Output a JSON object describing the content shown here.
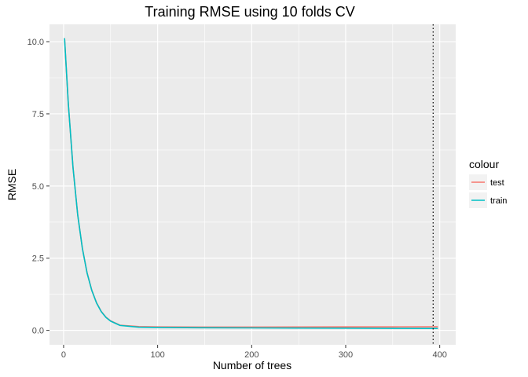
{
  "chart_data": {
    "type": "line",
    "title": "Training RMSE using 10 folds CV",
    "xlabel": "Number of trees",
    "ylabel": "RMSE",
    "xlim": [
      -15,
      417
    ],
    "ylim": [
      -0.5,
      10.6
    ],
    "x_ticks": [
      0,
      100,
      200,
      300,
      400
    ],
    "x_tick_labels": [
      "0",
      "100",
      "200",
      "300",
      "400"
    ],
    "y_ticks": [
      0,
      2.5,
      5,
      7.5,
      10
    ],
    "y_tick_labels": [
      "0.0",
      "2.5",
      "5.0",
      "7.5",
      "10.0"
    ],
    "grid": true,
    "legend": {
      "title": "colour",
      "position": "right",
      "entries": [
        "test",
        "train"
      ]
    },
    "series": [
      {
        "name": "test",
        "color": "#F8766D",
        "x": [
          1,
          5,
          10,
          15,
          20,
          25,
          30,
          35,
          40,
          45,
          50,
          60,
          80,
          100,
          150,
          200,
          250,
          300,
          350,
          398
        ],
        "y": [
          10.12,
          7.85,
          5.65,
          4.0,
          2.84,
          1.99,
          1.39,
          0.96,
          0.66,
          0.46,
          0.33,
          0.18,
          0.13,
          0.12,
          0.115,
          0.115,
          0.117,
          0.12,
          0.122,
          0.125
        ]
      },
      {
        "name": "train",
        "color": "#00BFC4",
        "x": [
          1,
          5,
          10,
          15,
          20,
          25,
          30,
          35,
          40,
          45,
          50,
          60,
          80,
          100,
          150,
          200,
          250,
          300,
          350,
          398
        ],
        "y": [
          10.12,
          7.85,
          5.64,
          4.0,
          2.83,
          1.98,
          1.38,
          0.95,
          0.65,
          0.45,
          0.32,
          0.17,
          0.11,
          0.1,
          0.09,
          0.085,
          0.08,
          0.075,
          0.07,
          0.065
        ]
      }
    ],
    "vline": {
      "x": 393,
      "style": "dotted",
      "color": "#000000"
    }
  }
}
